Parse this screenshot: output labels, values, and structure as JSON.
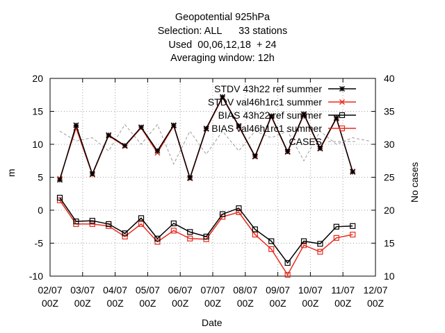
{
  "chart_data": {
    "type": "line",
    "title_lines": [
      "Geopotential 925hPa",
      "Selection: ALL      33 stations",
      "Used  00,06,12,18  + 24",
      "Averaging window: 12h"
    ],
    "xlabel": "Date",
    "ylabel": "m",
    "y2label": "No cases",
    "ylim": [
      -10,
      20
    ],
    "y2lim": [
      10,
      40
    ],
    "yticks": [
      "20",
      "15",
      "10",
      "5",
      "0",
      "-5",
      "-10"
    ],
    "y2ticks": [
      "40",
      "35",
      "30",
      "25",
      "20",
      "15",
      "10"
    ],
    "xticks": [
      {
        "top": "02/07",
        "bottom": "00Z"
      },
      {
        "top": "03/07",
        "bottom": "00Z"
      },
      {
        "top": "04/07",
        "bottom": "00Z"
      },
      {
        "top": "05/07",
        "bottom": "00Z"
      },
      {
        "top": "06/07",
        "bottom": "00Z"
      },
      {
        "top": "07/07",
        "bottom": "00Z"
      },
      {
        "top": "08/07",
        "bottom": "00Z"
      },
      {
        "top": "09/07",
        "bottom": "00Z"
      },
      {
        "top": "10/07",
        "bottom": "00Z"
      },
      {
        "top": "11/07",
        "bottom": "00Z"
      },
      {
        "top": "12/07",
        "bottom": "00Z"
      }
    ],
    "x_days": [
      0.3,
      0.8,
      1.3,
      1.8,
      2.3,
      2.8,
      3.3,
      3.8,
      4.3,
      4.8,
      5.3,
      5.8,
      6.3,
      6.8,
      7.3,
      7.8,
      8.3,
      8.8,
      9.3,
      9.8
    ],
    "grid": true,
    "legend_position": "top-right",
    "series": [
      {
        "name": "STDV 43h22_ref_summer",
        "legend_label": "STDV 43h22 ref summer",
        "axis": "y",
        "color": "#000000",
        "marker": "star",
        "dash": "",
        "values": [
          4.6,
          12.9,
          5.5,
          11.4,
          9.8,
          12.6,
          9.0,
          12.9,
          4.9,
          12.4,
          17.2,
          12.8,
          8.2,
          14.3,
          8.9,
          14.6,
          9.4,
          14.0,
          5.8,
          null
        ]
      },
      {
        "name": "STDV val46h1rc1_summer",
        "legend_label": "STDV val46h1rc1 summer",
        "axis": "y",
        "color": "#e8291c",
        "marker": "x",
        "dash": "",
        "values": [
          4.8,
          12.5,
          5.4,
          11.3,
          9.7,
          12.5,
          8.7,
          12.8,
          4.8,
          12.3,
          17.1,
          12.7,
          8.1,
          14.2,
          8.8,
          14.5,
          9.3,
          13.9,
          5.9,
          null
        ]
      },
      {
        "name": "BIAS 43h22_ref_summer",
        "legend_label": "BIAS 43h22 ref summer",
        "axis": "y",
        "color": "#000000",
        "marker": "square",
        "dash": "",
        "values": [
          1.9,
          -1.7,
          -1.6,
          -2.1,
          -3.5,
          -1.2,
          -4.3,
          -2.0,
          -3.3,
          -4.0,
          -0.6,
          0.3,
          -2.9,
          -4.7,
          -8.0,
          -4.7,
          -5.1,
          -2.5,
          -2.4,
          null
        ]
      },
      {
        "name": "BIAS val46h1rc1_summer",
        "legend_label": "BIAS val46h1rc1 summer",
        "axis": "y",
        "color": "#e8291c",
        "marker": "square",
        "dash": "",
        "values": [
          1.5,
          -2.1,
          -2.1,
          -2.4,
          -4.0,
          -2.1,
          -4.8,
          -3.1,
          -4.3,
          -4.4,
          -1.0,
          -0.3,
          -3.7,
          -5.9,
          -9.8,
          -5.3,
          -6.3,
          -4.2,
          -3.7,
          null
        ]
      },
      {
        "name": "CASES",
        "legend_label": "CASES",
        "axis": "y2",
        "color": "#999999",
        "marker": "none",
        "dash": "4,3",
        "values": [
          32.0,
          30.5,
          31.0,
          29.0,
          33.0,
          30.0,
          33.0,
          27.0,
          32.0,
          28.5,
          32.0,
          29.0,
          32.0,
          31.0,
          32.0,
          27.5,
          32.0,
          30.0,
          31.0,
          30.5
        ]
      }
    ]
  }
}
